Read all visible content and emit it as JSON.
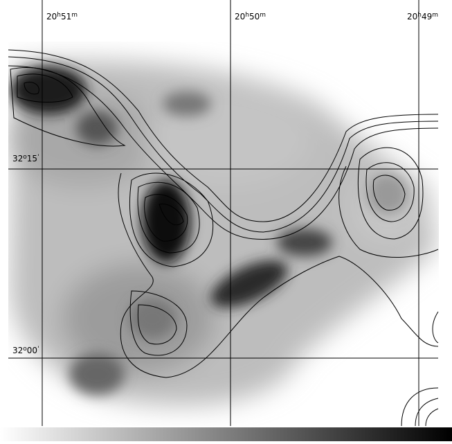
{
  "ra_labels": [
    [
      "20",
      "h",
      "51",
      "m"
    ],
    [
      "20",
      "h",
      "50",
      "m"
    ],
    [
      "20",
      "h",
      "49",
      "m"
    ]
  ],
  "dec_labels": [
    [
      "32",
      "o",
      "15",
      "'"
    ],
    [
      "32",
      "o",
      "00",
      "'"
    ]
  ]
}
